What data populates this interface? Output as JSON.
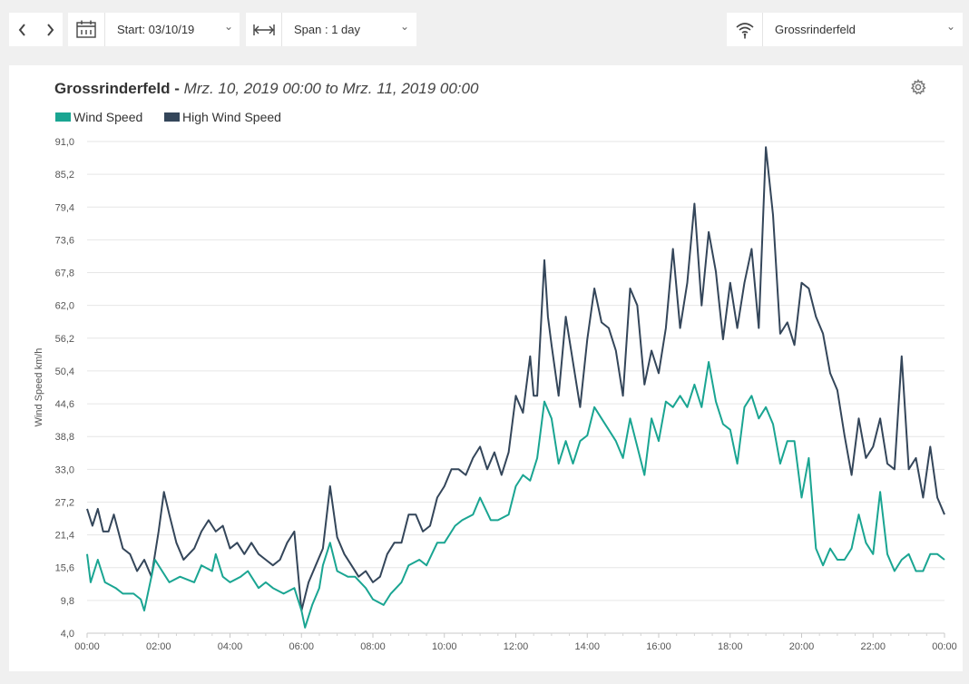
{
  "toolbar": {
    "prev_icon": "chevron-left-icon",
    "next_icon": "chevron-right-icon",
    "start_label": "Start: 03/10/19",
    "span_label": "Span : 1 day",
    "station_label": "Grossrinderfeld"
  },
  "chart_header": {
    "station": "Grossrinderfeld -",
    "range": "Mrz. 10, 2019 00:00 to Mrz. 11, 2019 00:00",
    "settings_icon": "gear-icon"
  },
  "chart_data": {
    "type": "line",
    "title": "Grossrinderfeld - Mrz. 10, 2019 00:00 to Mrz. 11, 2019 00:00",
    "xlabel": "",
    "ylabel": "Wind Speed km/h",
    "ylim": [
      4.0,
      91.0
    ],
    "xlim": [
      0,
      24
    ],
    "x_unit": "hours since 00:00",
    "yticks": [
      "4,0",
      "9,8",
      "15,6",
      "21,4",
      "27,2",
      "33,0",
      "38,8",
      "44,6",
      "50,4",
      "56,2",
      "62,0",
      "67,8",
      "73,6",
      "79,4",
      "85,2",
      "91,0"
    ],
    "xticks": [
      "00:00",
      "02:00",
      "04:00",
      "06:00",
      "08:00",
      "10:00",
      "12:00",
      "14:00",
      "16:00",
      "18:00",
      "20:00",
      "22:00",
      "00:00"
    ],
    "legend_position": "top-left",
    "grid": true,
    "series": [
      {
        "name": "Wind Speed",
        "color": "#1aa592",
        "points": [
          [
            0,
            18
          ],
          [
            0.1,
            13
          ],
          [
            0.3,
            17
          ],
          [
            0.5,
            13
          ],
          [
            0.8,
            12
          ],
          [
            1,
            11
          ],
          [
            1.3,
            11
          ],
          [
            1.5,
            10
          ],
          [
            1.6,
            8
          ],
          [
            1.8,
            14
          ],
          [
            1.9,
            17
          ],
          [
            2.1,
            15
          ],
          [
            2.3,
            13
          ],
          [
            2.6,
            14
          ],
          [
            3,
            13
          ],
          [
            3.2,
            16
          ],
          [
            3.5,
            15
          ],
          [
            3.6,
            18
          ],
          [
            3.8,
            14
          ],
          [
            4,
            13
          ],
          [
            4.3,
            14
          ],
          [
            4.5,
            15
          ],
          [
            4.8,
            12
          ],
          [
            5,
            13
          ],
          [
            5.2,
            12
          ],
          [
            5.5,
            11
          ],
          [
            5.8,
            12
          ],
          [
            6,
            8
          ],
          [
            6.1,
            5
          ],
          [
            6.3,
            9
          ],
          [
            6.5,
            12
          ],
          [
            6.6,
            16
          ],
          [
            6.8,
            20
          ],
          [
            7,
            15
          ],
          [
            7.3,
            14
          ],
          [
            7.5,
            14
          ],
          [
            7.8,
            12
          ],
          [
            8,
            10
          ],
          [
            8.3,
            9
          ],
          [
            8.5,
            11
          ],
          [
            8.8,
            13
          ],
          [
            9,
            16
          ],
          [
            9.3,
            17
          ],
          [
            9.5,
            16
          ],
          [
            9.8,
            20
          ],
          [
            10,
            20
          ],
          [
            10.3,
            23
          ],
          [
            10.5,
            24
          ],
          [
            10.8,
            25
          ],
          [
            11,
            28
          ],
          [
            11.3,
            24
          ],
          [
            11.5,
            24
          ],
          [
            11.8,
            25
          ],
          [
            12,
            30
          ],
          [
            12.2,
            32
          ],
          [
            12.4,
            31
          ],
          [
            12.6,
            35
          ],
          [
            12.8,
            45
          ],
          [
            13,
            42
          ],
          [
            13.2,
            34
          ],
          [
            13.4,
            38
          ],
          [
            13.6,
            34
          ],
          [
            13.8,
            38
          ],
          [
            14,
            39
          ],
          [
            14.2,
            44
          ],
          [
            14.4,
            42
          ],
          [
            14.6,
            40
          ],
          [
            14.8,
            38
          ],
          [
            15,
            35
          ],
          [
            15.2,
            42
          ],
          [
            15.4,
            37
          ],
          [
            15.6,
            32
          ],
          [
            15.8,
            42
          ],
          [
            16,
            38
          ],
          [
            16.2,
            45
          ],
          [
            16.4,
            44
          ],
          [
            16.6,
            46
          ],
          [
            16.8,
            44
          ],
          [
            17,
            48
          ],
          [
            17.2,
            44
          ],
          [
            17.4,
            52
          ],
          [
            17.6,
            45
          ],
          [
            17.8,
            41
          ],
          [
            18,
            40
          ],
          [
            18.2,
            34
          ],
          [
            18.4,
            44
          ],
          [
            18.6,
            46
          ],
          [
            18.8,
            42
          ],
          [
            19,
            44
          ],
          [
            19.2,
            41
          ],
          [
            19.4,
            34
          ],
          [
            19.6,
            38
          ],
          [
            19.8,
            38
          ],
          [
            20,
            28
          ],
          [
            20.2,
            35
          ],
          [
            20.4,
            19
          ],
          [
            20.6,
            16
          ],
          [
            20.8,
            19
          ],
          [
            21,
            17
          ],
          [
            21.2,
            17
          ],
          [
            21.4,
            19
          ],
          [
            21.6,
            25
          ],
          [
            21.8,
            20
          ],
          [
            22,
            18
          ],
          [
            22.2,
            29
          ],
          [
            22.4,
            18
          ],
          [
            22.6,
            15
          ],
          [
            22.8,
            17
          ],
          [
            23,
            18
          ],
          [
            23.2,
            15
          ],
          [
            23.4,
            15
          ],
          [
            23.6,
            18
          ],
          [
            23.8,
            18
          ],
          [
            24,
            17
          ]
        ]
      },
      {
        "name": "High Wind Speed",
        "color": "#34465a",
        "points": [
          [
            0,
            26
          ],
          [
            0.15,
            23
          ],
          [
            0.3,
            26
          ],
          [
            0.45,
            22
          ],
          [
            0.6,
            22
          ],
          [
            0.75,
            25
          ],
          [
            1,
            19
          ],
          [
            1.2,
            18
          ],
          [
            1.4,
            15
          ],
          [
            1.6,
            17
          ],
          [
            1.8,
            14
          ],
          [
            2,
            22
          ],
          [
            2.15,
            29
          ],
          [
            2.3,
            25
          ],
          [
            2.5,
            20
          ],
          [
            2.7,
            17
          ],
          [
            3,
            19
          ],
          [
            3.2,
            22
          ],
          [
            3.4,
            24
          ],
          [
            3.6,
            22
          ],
          [
            3.8,
            23
          ],
          [
            4,
            19
          ],
          [
            4.2,
            20
          ],
          [
            4.4,
            18
          ],
          [
            4.6,
            20
          ],
          [
            4.8,
            18
          ],
          [
            5,
            17
          ],
          [
            5.2,
            16
          ],
          [
            5.4,
            17
          ],
          [
            5.6,
            20
          ],
          [
            5.8,
            22
          ],
          [
            6,
            8
          ],
          [
            6.2,
            13
          ],
          [
            6.4,
            16
          ],
          [
            6.6,
            19
          ],
          [
            6.8,
            30
          ],
          [
            7,
            21
          ],
          [
            7.2,
            18
          ],
          [
            7.4,
            16
          ],
          [
            7.6,
            14
          ],
          [
            7.8,
            15
          ],
          [
            8,
            13
          ],
          [
            8.2,
            14
          ],
          [
            8.4,
            18
          ],
          [
            8.6,
            20
          ],
          [
            8.8,
            20
          ],
          [
            9,
            25
          ],
          [
            9.2,
            25
          ],
          [
            9.4,
            22
          ],
          [
            9.6,
            23
          ],
          [
            9.8,
            28
          ],
          [
            10,
            30
          ],
          [
            10.2,
            33
          ],
          [
            10.4,
            33
          ],
          [
            10.6,
            32
          ],
          [
            10.8,
            35
          ],
          [
            11,
            37
          ],
          [
            11.2,
            33
          ],
          [
            11.4,
            36
          ],
          [
            11.6,
            32
          ],
          [
            11.8,
            36
          ],
          [
            12,
            46
          ],
          [
            12.2,
            43
          ],
          [
            12.4,
            53
          ],
          [
            12.5,
            46
          ],
          [
            12.6,
            46
          ],
          [
            12.8,
            70
          ],
          [
            12.9,
            60
          ],
          [
            13,
            55
          ],
          [
            13.2,
            46
          ],
          [
            13.4,
            60
          ],
          [
            13.6,
            52
          ],
          [
            13.8,
            44
          ],
          [
            14,
            56
          ],
          [
            14.2,
            65
          ],
          [
            14.4,
            59
          ],
          [
            14.6,
            58
          ],
          [
            14.8,
            54
          ],
          [
            15,
            46
          ],
          [
            15.2,
            65
          ],
          [
            15.4,
            62
          ],
          [
            15.6,
            48
          ],
          [
            15.8,
            54
          ],
          [
            16,
            50
          ],
          [
            16.2,
            58
          ],
          [
            16.4,
            72
          ],
          [
            16.6,
            58
          ],
          [
            16.8,
            66
          ],
          [
            17,
            80
          ],
          [
            17.2,
            62
          ],
          [
            17.4,
            75
          ],
          [
            17.6,
            68
          ],
          [
            17.8,
            56
          ],
          [
            18,
            66
          ],
          [
            18.2,
            58
          ],
          [
            18.4,
            66
          ],
          [
            18.6,
            72
          ],
          [
            18.8,
            58
          ],
          [
            19,
            90
          ],
          [
            19.2,
            78
          ],
          [
            19.4,
            57
          ],
          [
            19.6,
            59
          ],
          [
            19.8,
            55
          ],
          [
            20,
            66
          ],
          [
            20.2,
            65
          ],
          [
            20.4,
            60
          ],
          [
            20.6,
            57
          ],
          [
            20.8,
            50
          ],
          [
            21,
            47
          ],
          [
            21.2,
            39
          ],
          [
            21.4,
            32
          ],
          [
            21.6,
            42
          ],
          [
            21.8,
            35
          ],
          [
            22,
            37
          ],
          [
            22.2,
            42
          ],
          [
            22.4,
            34
          ],
          [
            22.6,
            33
          ],
          [
            22.8,
            53
          ],
          [
            23,
            33
          ],
          [
            23.2,
            35
          ],
          [
            23.4,
            28
          ],
          [
            23.6,
            37
          ],
          [
            23.8,
            28
          ],
          [
            24,
            25
          ]
        ]
      }
    ]
  }
}
